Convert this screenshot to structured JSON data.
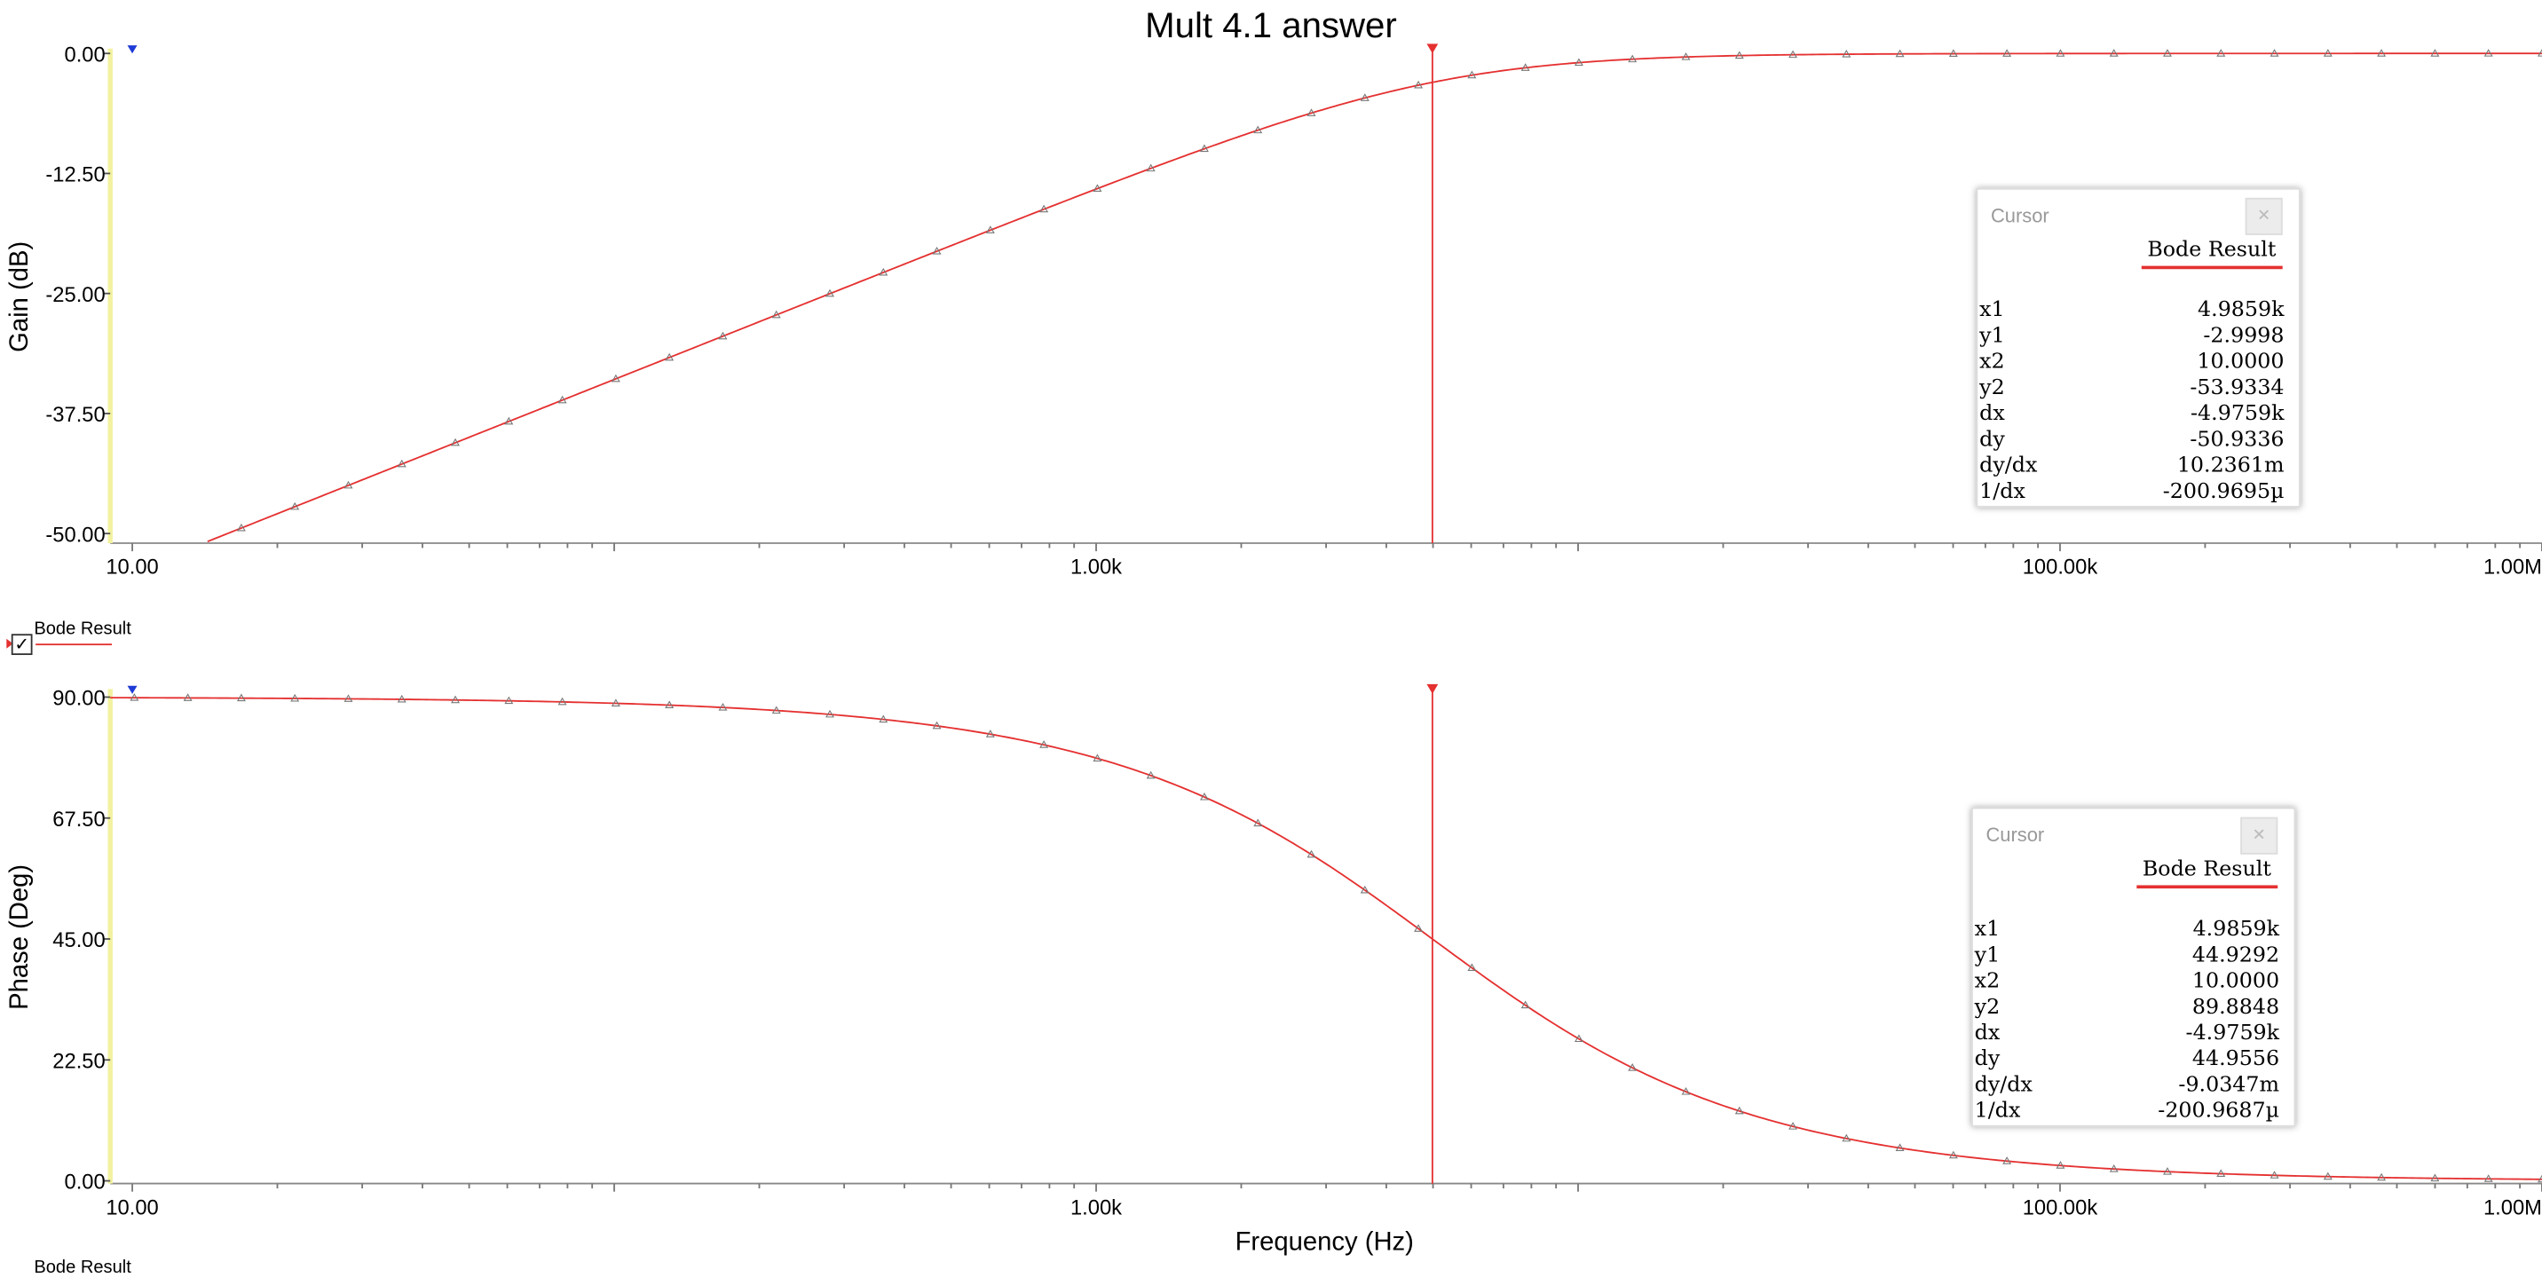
{
  "title": "Mult 4.1 answer",
  "colors": {
    "series": "#e53030",
    "cursor1": "#e53030",
    "cursor2": "#1f3bd6",
    "y_axis_line": "#f2f2a0"
  },
  "x_axis": {
    "label": "Frequency (Hz)",
    "ticks": [
      {
        "value": 10,
        "label": "10.00"
      },
      {
        "value": 1000,
        "label": "1.00k"
      },
      {
        "value": 100000,
        "label": "100.00k"
      },
      {
        "value": 1000000,
        "label": "1.00M"
      }
    ]
  },
  "legend": {
    "label": "Bode Result",
    "checked": "✓"
  },
  "legend_bottom": "Bode Result",
  "chart_data": [
    {
      "type": "line",
      "ylabel": "Gain (dB)",
      "xscale": "log",
      "xlim": [
        9,
        1000000
      ],
      "ylim": [
        -51,
        0.5
      ],
      "yticks": [
        {
          "value": 0,
          "label": "0.00"
        },
        {
          "value": -12.5,
          "label": "-12.50"
        },
        {
          "value": -25,
          "label": "-25.00"
        },
        {
          "value": -37.5,
          "label": "-37.50"
        },
        {
          "value": -50,
          "label": "-50.00"
        }
      ],
      "series": [
        {
          "name": "Bode Result",
          "model": "highpass-gain",
          "fc": 4985.9
        }
      ],
      "cursors": [
        {
          "x": 4985.9
        },
        {
          "x": 10
        }
      ],
      "cursor_panel": {
        "header": "Cursor",
        "series": "Bode Result",
        "rows": [
          {
            "label": "x1",
            "value": "4.9859k"
          },
          {
            "label": "y1",
            "value": "-2.9998"
          },
          {
            "label": "x2",
            "value": "10.0000"
          },
          {
            "label": "y2",
            "value": "-53.9334"
          },
          {
            "label": "dx",
            "value": "-4.9759k"
          },
          {
            "label": "dy",
            "value": "-50.9336"
          },
          {
            "label": "dy/dx",
            "value": "10.2361m"
          },
          {
            "label": "1/dx",
            "value": "-200.9695µ"
          }
        ]
      }
    },
    {
      "type": "line",
      "ylabel": "Phase (Deg)",
      "xscale": "log",
      "xlim": [
        9,
        1000000
      ],
      "ylim": [
        -0.5,
        91.5
      ],
      "yticks": [
        {
          "value": 90,
          "label": "90.00"
        },
        {
          "value": 67.5,
          "label": "67.50"
        },
        {
          "value": 45,
          "label": "45.00"
        },
        {
          "value": 22.5,
          "label": "22.50"
        },
        {
          "value": 0,
          "label": "0.00"
        }
      ],
      "series": [
        {
          "name": "Bode Result",
          "model": "highpass-phase",
          "fc": 4985.9
        }
      ],
      "cursors": [
        {
          "x": 4985.9
        },
        {
          "x": 10
        }
      ],
      "cursor_panel": {
        "header": "Cursor",
        "series": "Bode Result",
        "rows": [
          {
            "label": "x1",
            "value": "4.9859k"
          },
          {
            "label": "y1",
            "value": "44.9292"
          },
          {
            "label": "x2",
            "value": "10.0000"
          },
          {
            "label": "y2",
            "value": "89.8848"
          },
          {
            "label": "dx",
            "value": "-4.9759k"
          },
          {
            "label": "dy",
            "value": "44.9556"
          },
          {
            "label": "dy/dx",
            "value": "-9.0347m"
          },
          {
            "label": "1/dx",
            "value": "-200.9687µ"
          }
        ]
      }
    }
  ]
}
